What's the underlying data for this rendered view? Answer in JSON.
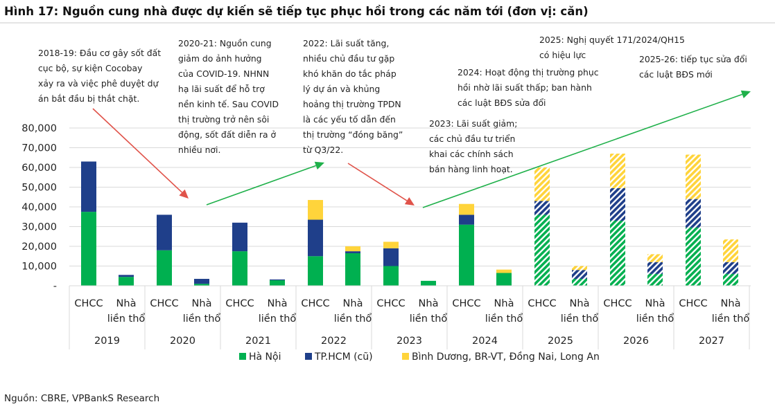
{
  "title": "Hình 17: Nguồn cung nhà được dự kiến sẽ tiếp tục phục hồi trong các năm tới (đơn vị: căn)",
  "source": "Nguồn: CBRE, VPBankS Research",
  "colors": {
    "hanoi": "#00b050",
    "hcm": "#1f3f8a",
    "south": "#ffd43b",
    "arrow_red": "#e0534a",
    "arrow_green": "#1fb04a"
  },
  "annotations": [
    {
      "id": "2018-19",
      "lines": [
        "2018-19: Đầu cơ gây sốt đất",
        "cục bộ, sự kiện Cocobay",
        "xảy ra và việc phê duyệt dự",
        "án bắt đầu bị thắt chặt."
      ]
    },
    {
      "id": "2020-21",
      "lines": [
        "2020-21: Nguồn cung",
        "giảm do ảnh hưởng",
        "của COVID-19. NHNN",
        "hạ lãi suất để hỗ trợ",
        "nền kinh tế. Sau COVID",
        "thị trường trở nên sôi",
        "động, sốt đất diễn ra ở",
        "nhiều nơi."
      ]
    },
    {
      "id": "2022",
      "lines": [
        "2022: Lãi suất tăng,",
        "nhiều chủ đầu tư gặp",
        "khó khăn do tắc pháp",
        "lý dự án và khủng",
        "hoảng thị trường TPDN",
        "là các yếu tố dẫn đến",
        "thị trường “đóng băng”",
        "từ Q3/22."
      ]
    },
    {
      "id": "2023",
      "lines": [
        "2023: Lãi suất giảm;",
        "các chủ đầu tư triển",
        "khai các chính sách",
        "bán hàng linh hoạt."
      ]
    },
    {
      "id": "2024",
      "lines": [
        "2024: Hoạt động thị trường phục",
        "hồi nhờ lãi suất thấp; ban hành",
        "các luật BĐS sửa đổi"
      ]
    },
    {
      "id": "2025",
      "lines": [
        "2025: Nghị quyết 171/2024/QH15",
        "có hiệu lực"
      ]
    },
    {
      "id": "2025-26",
      "lines": [
        "2025-26: tiếp tục sửa đổi",
        "các luật BĐS mới"
      ]
    }
  ],
  "chart_data": {
    "type": "bar",
    "stacked": true,
    "title": "Hình 17: Nguồn cung nhà được dự kiến sẽ tiếp tục phục hồi trong các năm tới (đơn vị: căn)",
    "years": [
      "2019",
      "2020",
      "2021",
      "2022",
      "2023",
      "2024",
      "2025",
      "2026",
      "2027"
    ],
    "subcategories": [
      [
        "CHCC"
      ],
      [
        "Nhà",
        "liền thổ"
      ]
    ],
    "forecast_years": [
      "2025",
      "2026",
      "2027"
    ],
    "ylim": [
      0,
      80000
    ],
    "yticks": [
      "-",
      "10,000",
      "20,000",
      "30,000",
      "40,000",
      "50,000",
      "60,000",
      "70,000",
      "80,000"
    ],
    "grid": true,
    "legend_position": "bottom",
    "series": [
      {
        "name": "Hà Nội",
        "color": "#00b050",
        "CHCC": [
          37500,
          18000,
          17500,
          15000,
          10000,
          31000,
          36000,
          33000,
          29500
        ],
        "Nha_lien_tho": [
          4500,
          1000,
          2800,
          16500,
          2500,
          6500,
          3500,
          6000,
          6000
        ]
      },
      {
        "name": "TP.HCM (cũ)",
        "color": "#1f3f8a",
        "CHCC": [
          25500,
          18000,
          14500,
          18500,
          9000,
          5000,
          7000,
          16500,
          14500
        ],
        "Nha_lien_tho": [
          1000,
          2500,
          400,
          1000,
          0,
          0,
          4500,
          6000,
          6000
        ]
      },
      {
        "name": "Bình Dương, BR-VT, Đồng Nai, Long An",
        "color": "#ffd43b",
        "CHCC": [
          0,
          0,
          0,
          10000,
          3300,
          5500,
          17000,
          17500,
          22500
        ],
        "Nha_lien_tho": [
          0,
          0,
          0,
          2500,
          0,
          1700,
          2000,
          4000,
          11500
        ]
      }
    ]
  }
}
